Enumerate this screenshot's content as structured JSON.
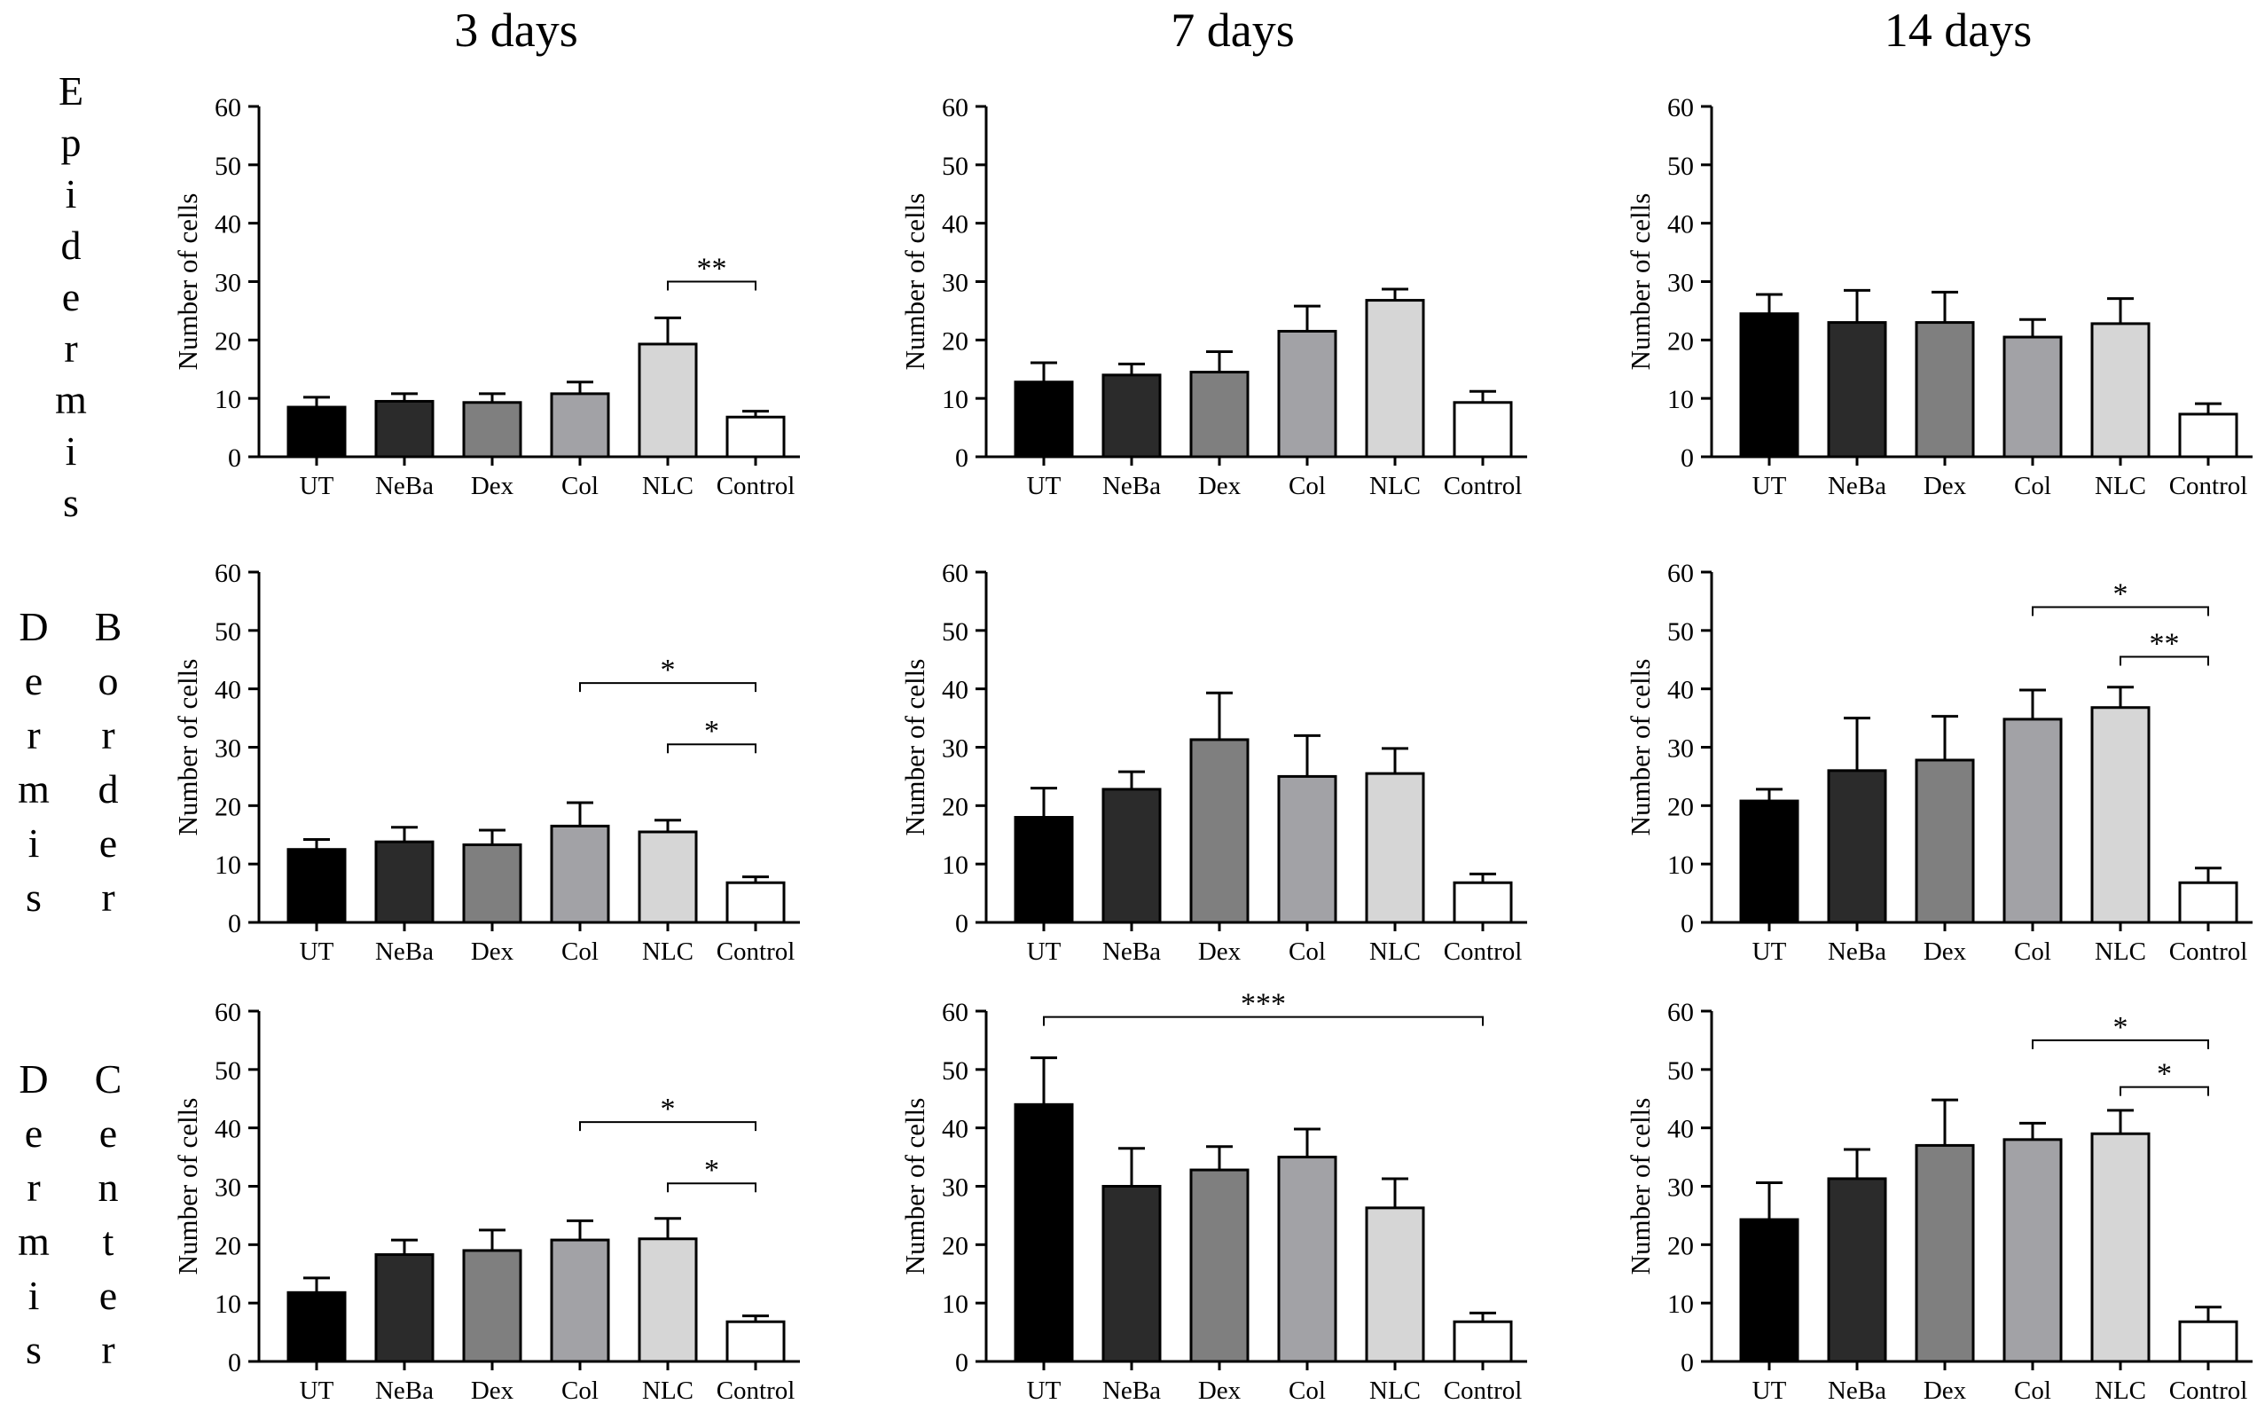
{
  "figure": {
    "column_titles": [
      "3 days",
      "7 days",
      "14 days"
    ],
    "row_labels": [
      {
        "name": "epidermis",
        "columns": [
          [
            "E",
            "p",
            "i",
            "d",
            "e",
            "r",
            "m",
            "i",
            "s"
          ]
        ]
      },
      {
        "name": "dermis-border",
        "columns": [
          [
            "D",
            "e",
            "r",
            "m",
            "i",
            "s"
          ],
          [
            "B",
            "o",
            "r",
            "d",
            "e",
            "r"
          ]
        ]
      },
      {
        "name": "dermis-center",
        "columns": [
          [
            "D",
            "e",
            "r",
            "m",
            "i",
            "s"
          ],
          [
            "C",
            "e",
            "n",
            "t",
            "e",
            "r"
          ]
        ]
      }
    ]
  },
  "chart_data": [
    {
      "type": "bar",
      "row": 0,
      "col": 0,
      "title": "3 days",
      "xlabel": "",
      "ylabel": "Number of cells",
      "ylim": [
        0,
        60
      ],
      "yticks": [
        0,
        10,
        20,
        30,
        40,
        50,
        60
      ],
      "categories": [
        "UT",
        "NeBa",
        "Dex",
        "Col",
        "NLC",
        "Control"
      ],
      "values": [
        8.5,
        9.5,
        9.3,
        10.8,
        19.3,
        6.8
      ],
      "errors": [
        1.7,
        1.3,
        1.5,
        2.0,
        4.5,
        1.0
      ],
      "colors": [
        "#000000",
        "#2b2b2b",
        "#7f7f7f",
        "#a2a2a6",
        "#d6d6d6",
        "#ffffff"
      ],
      "significance": [
        {
          "from": "NLC",
          "to": "Control",
          "label": "**",
          "level": 30
        }
      ]
    },
    {
      "type": "bar",
      "row": 0,
      "col": 1,
      "title": "7 days",
      "xlabel": "",
      "ylabel": "Number of cells",
      "ylim": [
        0,
        60
      ],
      "yticks": [
        0,
        10,
        20,
        30,
        40,
        50,
        60
      ],
      "categories": [
        "UT",
        "NeBa",
        "Dex",
        "Col",
        "NLC",
        "Control"
      ],
      "values": [
        12.8,
        14.0,
        14.5,
        21.5,
        26.8,
        9.3
      ],
      "errors": [
        3.3,
        1.9,
        3.5,
        4.3,
        1.9,
        1.9
      ],
      "colors": [
        "#000000",
        "#2b2b2b",
        "#7f7f7f",
        "#a2a2a6",
        "#d6d6d6",
        "#ffffff"
      ],
      "significance": []
    },
    {
      "type": "bar",
      "row": 0,
      "col": 2,
      "title": "14 days",
      "xlabel": "",
      "ylabel": "Number of cells",
      "ylim": [
        0,
        60
      ],
      "yticks": [
        0,
        10,
        20,
        30,
        40,
        50,
        60
      ],
      "categories": [
        "UT",
        "NeBa",
        "Dex",
        "Col",
        "NLC",
        "Control"
      ],
      "values": [
        24.5,
        23.0,
        23.0,
        20.5,
        22.8,
        7.3
      ],
      "errors": [
        3.3,
        5.5,
        5.2,
        3.0,
        4.3,
        1.8
      ],
      "colors": [
        "#000000",
        "#2b2b2b",
        "#7f7f7f",
        "#a2a2a6",
        "#d6d6d6",
        "#ffffff"
      ],
      "significance": []
    },
    {
      "type": "bar",
      "row": 1,
      "col": 0,
      "title": "3 days",
      "xlabel": "",
      "ylabel": "Number of cells",
      "ylim": [
        0,
        60
      ],
      "yticks": [
        0,
        10,
        20,
        30,
        40,
        50,
        60
      ],
      "categories": [
        "UT",
        "NeBa",
        "Dex",
        "Col",
        "NLC",
        "Control"
      ],
      "values": [
        12.5,
        13.8,
        13.3,
        16.5,
        15.5,
        6.8
      ],
      "errors": [
        1.7,
        2.5,
        2.5,
        4.0,
        2.0,
        1.0
      ],
      "colors": [
        "#000000",
        "#2b2b2b",
        "#7f7f7f",
        "#a2a2a6",
        "#d6d6d6",
        "#ffffff"
      ],
      "significance": [
        {
          "from": "Col",
          "to": "Control",
          "label": "*",
          "level": 41
        },
        {
          "from": "NLC",
          "to": "Control",
          "label": "*",
          "level": 30.5
        }
      ]
    },
    {
      "type": "bar",
      "row": 1,
      "col": 1,
      "title": "7 days",
      "xlabel": "",
      "ylabel": "Number of cells",
      "ylim": [
        0,
        60
      ],
      "yticks": [
        0,
        10,
        20,
        30,
        40,
        50,
        60
      ],
      "categories": [
        "UT",
        "NeBa",
        "Dex",
        "Col",
        "NLC",
        "Control"
      ],
      "values": [
        18.0,
        22.8,
        31.3,
        25.0,
        25.5,
        6.8
      ],
      "errors": [
        5.0,
        3.0,
        8.0,
        7.0,
        4.3,
        1.5
      ],
      "colors": [
        "#000000",
        "#2b2b2b",
        "#7f7f7f",
        "#a2a2a6",
        "#d6d6d6",
        "#ffffff"
      ],
      "significance": []
    },
    {
      "type": "bar",
      "row": 1,
      "col": 2,
      "title": "14 days",
      "xlabel": "",
      "ylabel": "Number of cells",
      "ylim": [
        0,
        60
      ],
      "yticks": [
        0,
        10,
        20,
        30,
        40,
        50,
        60
      ],
      "categories": [
        "UT",
        "NeBa",
        "Dex",
        "Col",
        "NLC",
        "Control"
      ],
      "values": [
        20.8,
        26.0,
        27.8,
        34.8,
        36.8,
        6.8
      ],
      "errors": [
        2.0,
        9.0,
        7.5,
        5.0,
        3.5,
        2.5
      ],
      "colors": [
        "#000000",
        "#2b2b2b",
        "#7f7f7f",
        "#a2a2a6",
        "#d6d6d6",
        "#ffffff"
      ],
      "significance": [
        {
          "from": "Col",
          "to": "Control",
          "label": "*",
          "level": 54
        },
        {
          "from": "NLC",
          "to": "Control",
          "label": "**",
          "level": 45.5
        }
      ]
    },
    {
      "type": "bar",
      "row": 2,
      "col": 0,
      "title": "3 days",
      "xlabel": "",
      "ylabel": "Number of cells",
      "ylim": [
        0,
        60
      ],
      "yticks": [
        0,
        10,
        20,
        30,
        40,
        50,
        60
      ],
      "categories": [
        "UT",
        "NeBa",
        "Dex",
        "Col",
        "NLC",
        "Control"
      ],
      "values": [
        11.8,
        18.3,
        19.0,
        20.8,
        21.0,
        6.8
      ],
      "errors": [
        2.5,
        2.5,
        3.5,
        3.3,
        3.5,
        1.0
      ],
      "colors": [
        "#000000",
        "#2b2b2b",
        "#7f7f7f",
        "#a2a2a6",
        "#d6d6d6",
        "#ffffff"
      ],
      "significance": [
        {
          "from": "Col",
          "to": "Control",
          "label": "*",
          "level": 41
        },
        {
          "from": "NLC",
          "to": "Control",
          "label": "*",
          "level": 30.5
        }
      ]
    },
    {
      "type": "bar",
      "row": 2,
      "col": 1,
      "title": "7 days",
      "xlabel": "",
      "ylabel": "Number of cells",
      "ylim": [
        0,
        60
      ],
      "yticks": [
        0,
        10,
        20,
        30,
        40,
        50,
        60
      ],
      "categories": [
        "UT",
        "NeBa",
        "Dex",
        "Col",
        "NLC",
        "Control"
      ],
      "values": [
        44.0,
        30.0,
        32.8,
        35.0,
        26.3,
        6.8
      ],
      "errors": [
        8.0,
        6.5,
        4.0,
        4.8,
        5.0,
        1.5
      ],
      "colors": [
        "#000000",
        "#2b2b2b",
        "#7f7f7f",
        "#a2a2a6",
        "#d6d6d6",
        "#ffffff"
      ],
      "significance": [
        {
          "from": "UT",
          "to": "Control",
          "label": "***",
          "level": 59
        }
      ]
    },
    {
      "type": "bar",
      "row": 2,
      "col": 2,
      "title": "14 days",
      "xlabel": "",
      "ylabel": "Number of cells",
      "ylim": [
        0,
        60
      ],
      "yticks": [
        0,
        10,
        20,
        30,
        40,
        50,
        60
      ],
      "categories": [
        "UT",
        "NeBa",
        "Dex",
        "Col",
        "NLC",
        "Control"
      ],
      "values": [
        24.3,
        31.3,
        37.0,
        38.0,
        39.0,
        6.8
      ],
      "errors": [
        6.3,
        5.0,
        7.8,
        2.8,
        4.0,
        2.5
      ],
      "colors": [
        "#000000",
        "#2b2b2b",
        "#7f7f7f",
        "#a2a2a6",
        "#d6d6d6",
        "#ffffff"
      ],
      "significance": [
        {
          "from": "Col",
          "to": "Control",
          "label": "*",
          "level": 55
        },
        {
          "from": "NLC",
          "to": "Control",
          "label": "*",
          "level": 47
        }
      ]
    }
  ]
}
